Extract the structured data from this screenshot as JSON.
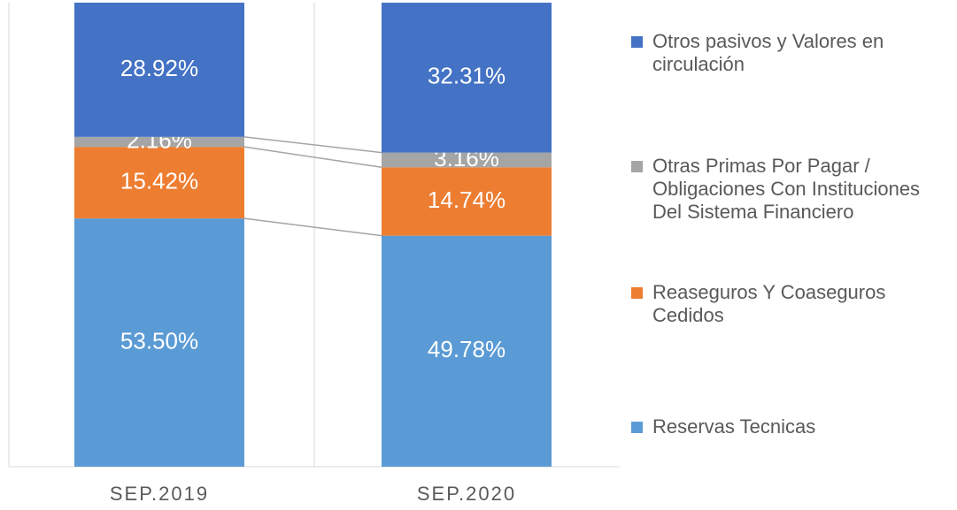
{
  "chart_data": {
    "type": "stacked-bar",
    "categories": [
      "SEP.2019",
      "SEP.2020"
    ],
    "series": [
      {
        "name": "Reservas Tecnicas",
        "color": "#5b9bd5",
        "values": [
          53.5,
          49.78
        ],
        "value_labels": [
          "53.50%",
          "49.78%"
        ]
      },
      {
        "name": "Reaseguros Y Coaseguros Cedidos",
        "color": "#ed7d31",
        "values": [
          15.42,
          14.74
        ],
        "value_labels": [
          "15.42%",
          "14.74%"
        ]
      },
      {
        "name": "Otras Primas Por Pagar / Obligaciones Con Instituciones Del Sistema Financiero",
        "color": "#a5a5a5",
        "values": [
          2.16,
          3.16
        ],
        "value_labels": [
          "2.16%",
          "3.16%"
        ]
      },
      {
        "name": "Otros pasivos y Valores en circulación",
        "color": "#4472c4",
        "values": [
          28.92,
          32.31
        ],
        "value_labels": [
          "28.92%",
          "32.31%"
        ]
      }
    ],
    "ylim": [
      0,
      100
    ]
  }
}
